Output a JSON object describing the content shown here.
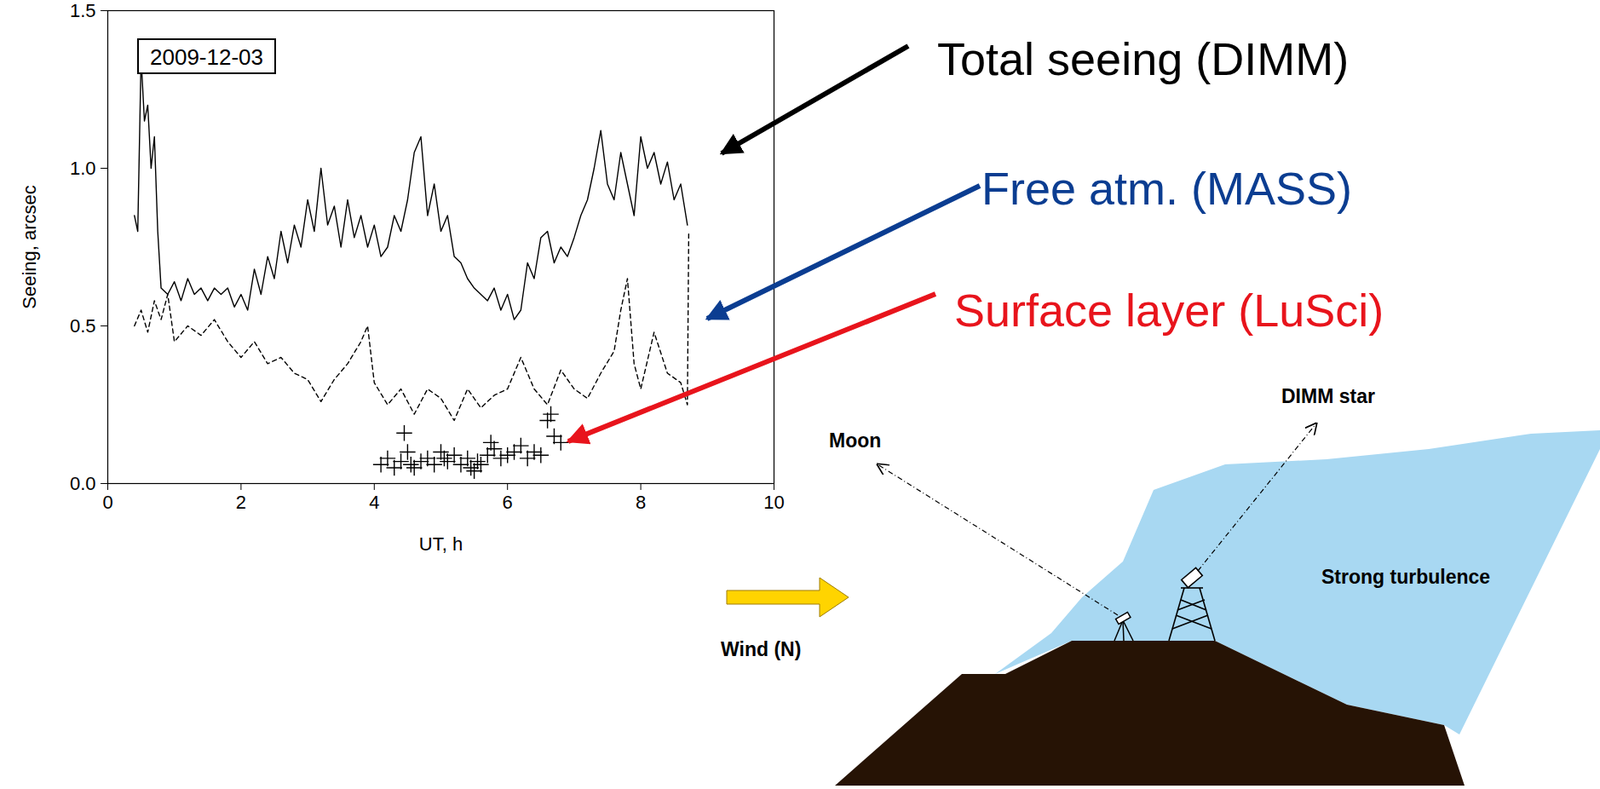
{
  "chart_data": {
    "type": "line",
    "title": "2009-12-03",
    "x_label": "UT, h",
    "y_label": "Seeing, arcsec",
    "xlim": [
      0,
      10
    ],
    "xticks": [
      0,
      2,
      4,
      6,
      8,
      10
    ],
    "ylim": [
      0,
      1.5
    ],
    "yticks": [
      {
        "value": 0,
        "label": "0.0"
      },
      {
        "value": 0.5,
        "label": "0.5"
      },
      {
        "value": 1,
        "label": "1.0"
      },
      {
        "value": 1.5,
        "label": "1.5"
      }
    ],
    "grid": false,
    "series": [
      {
        "type": "line",
        "color": "#000000",
        "line_style": "solid",
        "x": [
          0.4,
          0.45,
          0.5,
          0.55,
          0.6,
          0.65,
          0.7,
          0.75,
          0.8,
          0.9,
          1.0,
          1.1,
          1.2,
          1.3,
          1.4,
          1.5,
          1.6,
          1.7,
          1.8,
          1.9,
          2.0,
          2.1,
          2.2,
          2.3,
          2.4,
          2.5,
          2.6,
          2.7,
          2.8,
          2.9,
          3.0,
          3.1,
          3.2,
          3.3,
          3.4,
          3.5,
          3.6,
          3.7,
          3.8,
          3.9,
          4.0,
          4.1,
          4.2,
          4.3,
          4.4,
          4.5,
          4.6,
          4.7,
          4.8,
          4.9,
          5.0,
          5.1,
          5.2,
          5.3,
          5.4,
          5.5,
          5.6,
          5.7,
          5.8,
          5.9,
          6.0,
          6.1,
          6.2,
          6.3,
          6.4,
          6.5,
          6.6,
          6.7,
          6.8,
          6.9,
          7.0,
          7.1,
          7.2,
          7.3,
          7.4,
          7.5,
          7.6,
          7.7,
          7.8,
          7.9,
          8.0,
          8.1,
          8.2,
          8.3,
          8.4,
          8.5,
          8.6,
          8.7
        ],
        "values": [
          0.85,
          0.8,
          1.35,
          1.15,
          1.2,
          1.0,
          1.1,
          0.8,
          0.62,
          0.6,
          0.64,
          0.58,
          0.65,
          0.6,
          0.62,
          0.58,
          0.62,
          0.6,
          0.62,
          0.56,
          0.6,
          0.55,
          0.68,
          0.6,
          0.72,
          0.65,
          0.8,
          0.7,
          0.82,
          0.75,
          0.9,
          0.8,
          1.0,
          0.82,
          0.88,
          0.75,
          0.9,
          0.78,
          0.85,
          0.75,
          0.82,
          0.72,
          0.75,
          0.85,
          0.8,
          0.9,
          1.05,
          1.1,
          0.85,
          0.95,
          0.8,
          0.85,
          0.72,
          0.7,
          0.65,
          0.62,
          0.6,
          0.58,
          0.62,
          0.55,
          0.6,
          0.52,
          0.55,
          0.7,
          0.65,
          0.78,
          0.8,
          0.7,
          0.75,
          0.72,
          0.78,
          0.85,
          0.9,
          1.0,
          1.12,
          0.95,
          0.9,
          1.05,
          0.95,
          0.85,
          1.1,
          1.0,
          1.05,
          0.95,
          1.02,
          0.9,
          0.95,
          0.82
        ]
      },
      {
        "type": "line",
        "color": "#000000",
        "line_style": "dashed",
        "x": [
          0.4,
          0.5,
          0.6,
          0.7,
          0.8,
          0.9,
          1.0,
          1.2,
          1.4,
          1.6,
          1.8,
          2.0,
          2.2,
          2.4,
          2.6,
          2.8,
          3.0,
          3.2,
          3.4,
          3.6,
          3.8,
          3.9,
          4.0,
          4.2,
          4.4,
          4.6,
          4.8,
          5.0,
          5.2,
          5.4,
          5.6,
          5.8,
          6.0,
          6.2,
          6.4,
          6.6,
          6.8,
          7.0,
          7.2,
          7.4,
          7.6,
          7.7,
          7.8,
          7.9,
          8.0,
          8.2,
          8.4,
          8.6,
          8.7,
          8.72
        ],
        "values": [
          0.5,
          0.55,
          0.48,
          0.58,
          0.52,
          0.6,
          0.45,
          0.5,
          0.47,
          0.52,
          0.45,
          0.4,
          0.45,
          0.38,
          0.4,
          0.35,
          0.33,
          0.26,
          0.33,
          0.38,
          0.45,
          0.5,
          0.32,
          0.25,
          0.3,
          0.22,
          0.3,
          0.27,
          0.2,
          0.3,
          0.24,
          0.28,
          0.3,
          0.4,
          0.3,
          0.25,
          0.36,
          0.3,
          0.27,
          0.35,
          0.42,
          0.55,
          0.65,
          0.38,
          0.3,
          0.48,
          0.35,
          0.32,
          0.25,
          0.8
        ]
      },
      {
        "type": "scatter",
        "color": "#000000",
        "marker": "plus",
        "x": [
          4.1,
          4.2,
          4.3,
          4.4,
          4.45,
          4.5,
          4.55,
          4.6,
          4.7,
          4.8,
          4.9,
          5.0,
          5.05,
          5.1,
          5.2,
          5.3,
          5.4,
          5.45,
          5.5,
          5.55,
          5.6,
          5.7,
          5.75,
          5.8,
          5.9,
          6.0,
          6.1,
          6.2,
          6.3,
          6.4,
          6.5,
          6.6,
          6.65,
          6.7,
          6.8
        ],
        "values": [
          0.06,
          0.08,
          0.05,
          0.07,
          0.16,
          0.1,
          0.06,
          0.05,
          0.07,
          0.08,
          0.06,
          0.1,
          0.08,
          0.07,
          0.09,
          0.06,
          0.08,
          0.05,
          0.04,
          0.07,
          0.06,
          0.09,
          0.13,
          0.11,
          0.08,
          0.09,
          0.1,
          0.12,
          0.08,
          0.1,
          0.09,
          0.2,
          0.22,
          0.15,
          0.13
        ]
      }
    ],
    "annotations": [
      {
        "text": "Total seeing (DIMM)",
        "color": "#000000"
      },
      {
        "text": "Free atm. (MASS)",
        "color": "#0b3d91"
      },
      {
        "text": "Surface layer (LuSci)",
        "color": "#e8141c"
      }
    ]
  },
  "diagram": {
    "moon": "Moon",
    "star": "DIMM star",
    "turbulence": "Strong turbulence",
    "wind": "Wind (N)"
  }
}
